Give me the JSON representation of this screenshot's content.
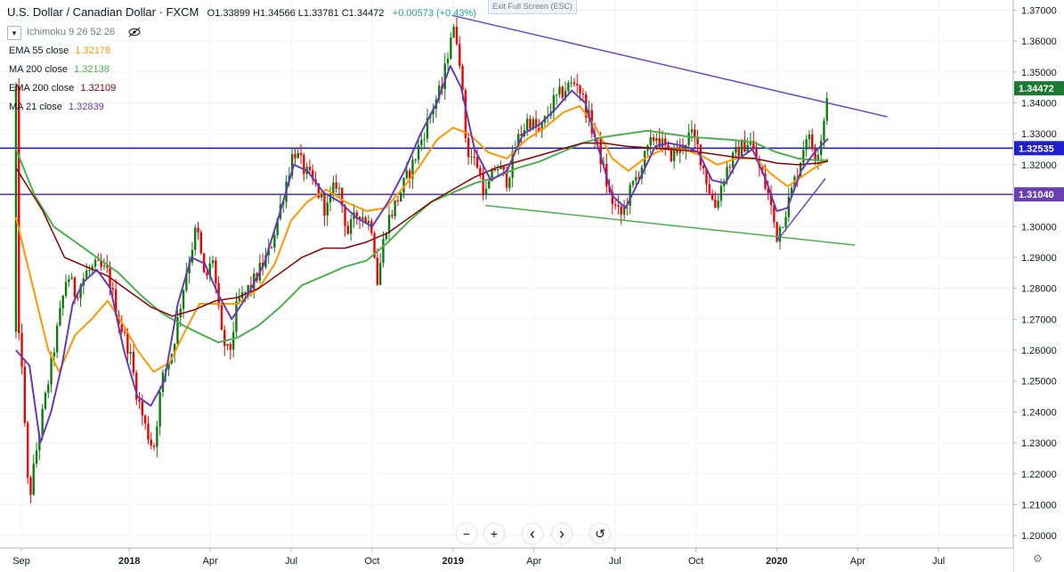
{
  "header": {
    "title": "U.S. Dollar / Canadian Dollar · FXCM",
    "ohlc": "O1.33899  H1.34566  L1.33781  C1.34472",
    "change": "+0.00573 (+0.43%)",
    "exit_fullscreen": "Exit Full Screen (ESC)"
  },
  "indicators": {
    "ichimoku": "Ichimoku 9 26 52 26",
    "items": [
      {
        "label": "EMA 55 close",
        "value": "1.32178",
        "color": "#ff9800"
      },
      {
        "label": "MA 200 close",
        "value": "1.32138",
        "color": "#4caf50"
      },
      {
        "label": "EMA 200 close",
        "value": "1.32109",
        "color": "#8b0000"
      },
      {
        "label": "MA 21 close",
        "value": "1.32839",
        "color": "#673ab7"
      }
    ]
  },
  "controls": {
    "zoom_out": "−",
    "zoom_in": "+",
    "scroll_left": "‹",
    "scroll_right": "›",
    "reset": "↺",
    "settings": "⚙"
  },
  "chart_data": {
    "type": "candlestick",
    "ylim": [
      1.196,
      1.3733
    ],
    "y_ticks": [
      "1.37000",
      "1.36000",
      "1.35000",
      "1.34000",
      "1.33000",
      "1.32000",
      "1.31000",
      "1.30000",
      "1.29000",
      "1.28000",
      "1.27000",
      "1.26000",
      "1.25000",
      "1.24000",
      "1.23000",
      "1.22000",
      "1.21000",
      "1.20000"
    ],
    "x_ticks": [
      {
        "label": "Sep",
        "m": 0
      },
      {
        "label": "2018",
        "m": 4
      },
      {
        "label": "Apr",
        "m": 7
      },
      {
        "label": "Jul",
        "m": 10
      },
      {
        "label": "Oct",
        "m": 13
      },
      {
        "label": "2019",
        "m": 16
      },
      {
        "label": "Apr",
        "m": 19
      },
      {
        "label": "Jul",
        "m": 22
      },
      {
        "label": "Oct",
        "m": 25
      },
      {
        "label": "2020",
        "m": 28
      },
      {
        "label": "Apr",
        "m": 31
      },
      {
        "label": "Jul",
        "m": 34
      }
    ],
    "price_labels": [
      {
        "value": 1.34472,
        "text": "1.34472",
        "color": "#1e7a33"
      },
      {
        "value": 1.32535,
        "text": "1.32535",
        "color": "#1f1fd0"
      },
      {
        "value": 1.3104,
        "text": "1.31040",
        "color": "#6a3fb0"
      }
    ],
    "hlines": [
      {
        "y": 1.32535,
        "color": "#1f1fd0"
      },
      {
        "y": 1.3104,
        "color": "#6a3fb0"
      }
    ],
    "trendlines": [
      {
        "from": [
          15.97,
          1.3683
        ],
        "to": [
          32.1,
          1.3355
        ],
        "color": "#6a4cc4"
      },
      {
        "from": [
          17.2,
          1.3068
        ],
        "to": [
          30.9,
          1.294
        ],
        "color": "#4caf50"
      },
      {
        "from": [
          28.0,
          1.2953
        ],
        "to": [
          29.8,
          1.3155
        ],
        "color": "#6a4cc4"
      }
    ],
    "anchors": [
      [
        -0.2,
        1.266
      ],
      [
        0.0,
        1.26
      ],
      [
        0.2,
        1.22
      ],
      [
        0.3,
        1.212
      ],
      [
        0.6,
        1.23
      ],
      [
        0.8,
        1.24
      ],
      [
        1.0,
        1.25
      ],
      [
        1.3,
        1.265
      ],
      [
        1.7,
        1.285
      ],
      [
        2.0,
        1.278
      ],
      [
        2.4,
        1.285
      ],
      [
        2.8,
        1.287
      ],
      [
        3.2,
        1.285
      ],
      [
        3.6,
        1.27
      ],
      [
        4.0,
        1.26
      ],
      [
        4.3,
        1.245
      ],
      [
        4.6,
        1.235
      ],
      [
        4.9,
        1.228
      ],
      [
        5.2,
        1.25
      ],
      [
        5.6,
        1.26
      ],
      [
        6.1,
        1.285
      ],
      [
        6.5,
        1.3
      ],
      [
        6.8,
        1.282
      ],
      [
        7.1,
        1.29
      ],
      [
        7.4,
        1.265
      ],
      [
        7.7,
        1.258
      ],
      [
        8.0,
        1.275
      ],
      [
        8.6,
        1.282
      ],
      [
        9.2,
        1.292
      ],
      [
        9.7,
        1.31
      ],
      [
        10.1,
        1.325
      ],
      [
        10.5,
        1.318
      ],
      [
        10.9,
        1.313
      ],
      [
        11.3,
        1.305
      ],
      [
        11.7,
        1.315
      ],
      [
        12.1,
        1.298
      ],
      [
        12.5,
        1.305
      ],
      [
        13.0,
        1.3
      ],
      [
        13.2,
        1.282
      ],
      [
        13.5,
        1.3
      ],
      [
        14.0,
        1.31
      ],
      [
        14.5,
        1.32
      ],
      [
        14.9,
        1.33
      ],
      [
        15.3,
        1.34
      ],
      [
        15.6,
        1.345
      ],
      [
        15.95,
        1.364
      ],
      [
        16.2,
        1.36
      ],
      [
        16.5,
        1.325
      ],
      [
        16.9,
        1.32
      ],
      [
        17.2,
        1.31
      ],
      [
        17.6,
        1.32
      ],
      [
        18.0,
        1.315
      ],
      [
        18.4,
        1.328
      ],
      [
        18.8,
        1.335
      ],
      [
        19.2,
        1.33
      ],
      [
        19.7,
        1.34
      ],
      [
        20.2,
        1.345
      ],
      [
        20.6,
        1.347
      ],
      [
        21.0,
        1.336
      ],
      [
        21.4,
        1.325
      ],
      [
        21.8,
        1.31
      ],
      [
        22.2,
        1.303
      ],
      [
        22.6,
        1.312
      ],
      [
        23.0,
        1.32
      ],
      [
        23.5,
        1.33
      ],
      [
        24.0,
        1.323
      ],
      [
        24.4,
        1.325
      ],
      [
        24.8,
        1.33
      ],
      [
        25.1,
        1.325
      ],
      [
        25.4,
        1.315
      ],
      [
        25.7,
        1.306
      ],
      [
        26.1,
        1.318
      ],
      [
        26.6,
        1.325
      ],
      [
        27.0,
        1.328
      ],
      [
        27.3,
        1.32
      ],
      [
        27.7,
        1.31
      ],
      [
        28.0,
        1.297
      ],
      [
        28.4,
        1.307
      ],
      [
        28.8,
        1.319
      ],
      [
        29.1,
        1.33
      ],
      [
        29.45,
        1.323
      ],
      [
        29.7,
        1.331
      ],
      [
        29.88,
        1.3447
      ]
    ],
    "ma_series": [
      {
        "name": "EMA 55",
        "color": "#ff9800",
        "width": 2,
        "points": [
          [
            -0.2,
            1.303
          ],
          [
            0.5,
            1.278
          ],
          [
            1.0,
            1.26
          ],
          [
            1.4,
            1.253
          ],
          [
            2.0,
            1.265
          ],
          [
            2.6,
            1.27
          ],
          [
            3.2,
            1.276
          ],
          [
            3.8,
            1.268
          ],
          [
            4.3,
            1.26
          ],
          [
            4.9,
            1.253
          ],
          [
            5.5,
            1.256
          ],
          [
            6.0,
            1.265
          ],
          [
            6.6,
            1.275
          ],
          [
            7.3,
            1.275
          ],
          [
            8.0,
            1.275
          ],
          [
            8.8,
            1.28
          ],
          [
            9.4,
            1.288
          ],
          [
            10.0,
            1.302
          ],
          [
            10.6,
            1.308
          ],
          [
            11.3,
            1.312
          ],
          [
            12.0,
            1.308
          ],
          [
            12.8,
            1.305
          ],
          [
            13.5,
            1.306
          ],
          [
            14.2,
            1.313
          ],
          [
            14.8,
            1.32
          ],
          [
            15.4,
            1.328
          ],
          [
            16.0,
            1.332
          ],
          [
            16.6,
            1.33
          ],
          [
            17.3,
            1.324
          ],
          [
            18.0,
            1.322
          ],
          [
            18.7,
            1.328
          ],
          [
            19.4,
            1.332
          ],
          [
            20.1,
            1.337
          ],
          [
            20.7,
            1.339
          ],
          [
            21.3,
            1.332
          ],
          [
            21.9,
            1.322
          ],
          [
            22.5,
            1.318
          ],
          [
            23.1,
            1.322
          ],
          [
            23.8,
            1.325
          ],
          [
            24.5,
            1.325
          ],
          [
            25.2,
            1.323
          ],
          [
            25.8,
            1.32
          ],
          [
            26.5,
            1.322
          ],
          [
            27.2,
            1.322
          ],
          [
            27.8,
            1.317
          ],
          [
            28.4,
            1.313
          ],
          [
            28.9,
            1.316
          ],
          [
            29.4,
            1.319
          ],
          [
            29.9,
            1.3218
          ]
        ]
      },
      {
        "name": "MA 200",
        "color": "#4caf50",
        "width": 2,
        "points": [
          [
            -0.2,
            1.325
          ],
          [
            0.5,
            1.31
          ],
          [
            1.2,
            1.3
          ],
          [
            2.0,
            1.295
          ],
          [
            2.8,
            1.29
          ],
          [
            3.6,
            1.285
          ],
          [
            4.4,
            1.278
          ],
          [
            5.2,
            1.272
          ],
          [
            6.0,
            1.268
          ],
          [
            6.7,
            1.265
          ],
          [
            7.3,
            1.2625
          ],
          [
            8.0,
            1.264
          ],
          [
            8.8,
            1.268
          ],
          [
            9.6,
            1.274
          ],
          [
            10.4,
            1.281
          ],
          [
            11.2,
            1.284
          ],
          [
            12.0,
            1.287
          ],
          [
            12.8,
            1.289
          ],
          [
            13.6,
            1.295
          ],
          [
            14.4,
            1.302
          ],
          [
            15.2,
            1.308
          ],
          [
            16.0,
            1.311
          ],
          [
            16.8,
            1.314
          ],
          [
            17.6,
            1.316
          ],
          [
            18.4,
            1.319
          ],
          [
            19.2,
            1.321
          ],
          [
            20.0,
            1.324
          ],
          [
            20.8,
            1.327
          ],
          [
            21.6,
            1.329
          ],
          [
            22.4,
            1.33
          ],
          [
            23.2,
            1.331
          ],
          [
            24.0,
            1.33
          ],
          [
            24.8,
            1.329
          ],
          [
            25.6,
            1.3285
          ],
          [
            26.4,
            1.328
          ],
          [
            27.2,
            1.327
          ],
          [
            28.0,
            1.324
          ],
          [
            28.8,
            1.322
          ],
          [
            29.4,
            1.3215
          ],
          [
            29.9,
            1.3214
          ]
        ]
      },
      {
        "name": "EMA 200",
        "color": "#8b0000",
        "width": 1.5,
        "points": [
          [
            -0.2,
            1.319
          ],
          [
            0.8,
            1.305
          ],
          [
            1.6,
            1.29
          ],
          [
            2.4,
            1.287
          ],
          [
            3.2,
            1.284
          ],
          [
            4.0,
            1.279
          ],
          [
            4.8,
            1.274
          ],
          [
            5.6,
            1.271
          ],
          [
            6.4,
            1.273
          ],
          [
            7.2,
            1.276
          ],
          [
            8.0,
            1.277
          ],
          [
            8.8,
            1.28
          ],
          [
            9.6,
            1.285
          ],
          [
            10.4,
            1.29
          ],
          [
            11.2,
            1.293
          ],
          [
            12.0,
            1.293
          ],
          [
            12.8,
            1.295
          ],
          [
            13.6,
            1.298
          ],
          [
            14.4,
            1.303
          ],
          [
            15.2,
            1.308
          ],
          [
            16.0,
            1.312
          ],
          [
            16.8,
            1.316
          ],
          [
            17.6,
            1.319
          ],
          [
            18.4,
            1.321
          ],
          [
            19.2,
            1.323
          ],
          [
            20.0,
            1.325
          ],
          [
            20.8,
            1.327
          ],
          [
            21.6,
            1.327
          ],
          [
            22.4,
            1.326
          ],
          [
            23.2,
            1.3255
          ],
          [
            24.0,
            1.325
          ],
          [
            24.8,
            1.3245
          ],
          [
            25.6,
            1.3235
          ],
          [
            26.4,
            1.3225
          ],
          [
            27.2,
            1.322
          ],
          [
            28.0,
            1.3205
          ],
          [
            28.8,
            1.32
          ],
          [
            29.5,
            1.3205
          ],
          [
            29.9,
            1.3211
          ]
        ]
      },
      {
        "name": "MA 21",
        "color": "#673ab7",
        "width": 2,
        "points": [
          [
            -0.2,
            1.26
          ],
          [
            0.3,
            1.255
          ],
          [
            0.7,
            1.23
          ],
          [
            1.1,
            1.24
          ],
          [
            1.5,
            1.255
          ],
          [
            1.9,
            1.275
          ],
          [
            2.3,
            1.282
          ],
          [
            2.8,
            1.286
          ],
          [
            3.3,
            1.28
          ],
          [
            3.8,
            1.26
          ],
          [
            4.3,
            1.245
          ],
          [
            4.8,
            1.242
          ],
          [
            5.3,
            1.25
          ],
          [
            5.8,
            1.275
          ],
          [
            6.3,
            1.29
          ],
          [
            6.8,
            1.288
          ],
          [
            7.3,
            1.278
          ],
          [
            7.8,
            1.27
          ],
          [
            8.4,
            1.278
          ],
          [
            9.0,
            1.288
          ],
          [
            9.6,
            1.305
          ],
          [
            10.1,
            1.32
          ],
          [
            10.6,
            1.318
          ],
          [
            11.2,
            1.311
          ],
          [
            11.8,
            1.308
          ],
          [
            12.4,
            1.303
          ],
          [
            13.0,
            1.3
          ],
          [
            13.6,
            1.308
          ],
          [
            14.2,
            1.318
          ],
          [
            14.8,
            1.33
          ],
          [
            15.4,
            1.34
          ],
          [
            15.9,
            1.352
          ],
          [
            16.3,
            1.345
          ],
          [
            16.8,
            1.325
          ],
          [
            17.4,
            1.315
          ],
          [
            18.0,
            1.318
          ],
          [
            18.6,
            1.33
          ],
          [
            19.2,
            1.333
          ],
          [
            19.8,
            1.338
          ],
          [
            20.4,
            1.344
          ],
          [
            20.9,
            1.34
          ],
          [
            21.4,
            1.325
          ],
          [
            21.9,
            1.31
          ],
          [
            22.4,
            1.306
          ],
          [
            22.9,
            1.315
          ],
          [
            23.5,
            1.326
          ],
          [
            24.0,
            1.327
          ],
          [
            24.6,
            1.326
          ],
          [
            25.1,
            1.324
          ],
          [
            25.6,
            1.315
          ],
          [
            26.1,
            1.314
          ],
          [
            26.6,
            1.322
          ],
          [
            27.1,
            1.325
          ],
          [
            27.6,
            1.315
          ],
          [
            28.0,
            1.305
          ],
          [
            28.4,
            1.306
          ],
          [
            28.9,
            1.318
          ],
          [
            29.4,
            1.324
          ],
          [
            29.9,
            1.3284
          ]
        ]
      }
    ]
  }
}
